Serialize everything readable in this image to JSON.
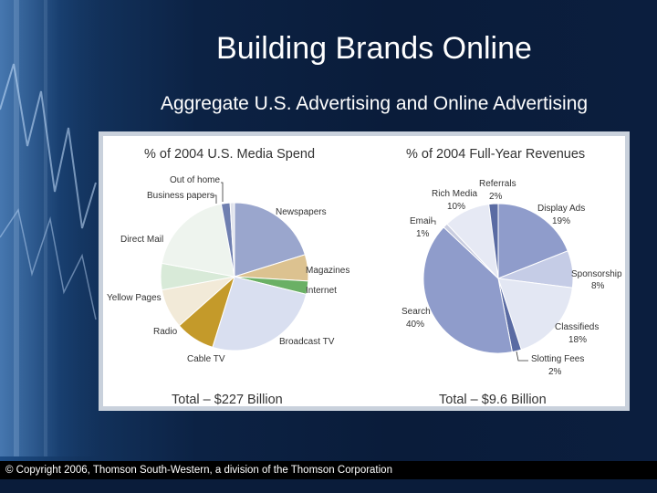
{
  "slide": {
    "title": "Building Brands Online",
    "subtitle": "Aggregate U.S. Advertising and Online Advertising",
    "footer": "© Copyright 2006, Thomson South-Western, a division of the Thomson Corporation"
  },
  "colors": {
    "background": "#0c2244",
    "panel_border": "#c9d1dc"
  },
  "chart_data": [
    {
      "type": "pie",
      "title": "% of 2004 U.S. Media Spend",
      "total_label": "Total – $227 Billion",
      "slices": [
        {
          "label": "Newspapers",
          "value": 21,
          "color": "#9aa6cd"
        },
        {
          "label": "Magazines",
          "value": 6,
          "color": "#dcc290"
        },
        {
          "label": "Internet",
          "value": 3,
          "color": "#6ab065"
        },
        {
          "label": "Broadcast TV",
          "value": 27,
          "color": "#d9dff0"
        },
        {
          "label": "Cable TV",
          "value": 9,
          "color": "#c49a2a"
        },
        {
          "label": "Radio",
          "value": 9,
          "color": "#f2ead8"
        },
        {
          "label": "Yellow Pages",
          "value": 6,
          "color": "#d8ead8"
        },
        {
          "label": "Direct Mail",
          "value": 20,
          "color": "#eef4ee"
        },
        {
          "label": "Business papers",
          "value": 2,
          "color": "#6f7fb0"
        },
        {
          "label": "Out of home",
          "value": 1,
          "color": "#e0e3ec"
        }
      ]
    },
    {
      "type": "pie",
      "title": "% of 2004 Full-Year Revenues",
      "total_label": "Total – $9.6 Billion",
      "slices": [
        {
          "label": "Display Ads",
          "value": 19,
          "pct": "19%",
          "color": "#8f9ccb"
        },
        {
          "label": "Sponsorship",
          "value": 8,
          "pct": "8%",
          "color": "#c5cce6"
        },
        {
          "label": "Classifieds",
          "value": 18,
          "pct": "18%",
          "color": "#e3e7f3"
        },
        {
          "label": "Slotting Fees",
          "value": 2,
          "pct": "2%",
          "color": "#5a6ba3"
        },
        {
          "label": "Search",
          "value": 40,
          "pct": "40%",
          "color": "#8f9ccb"
        },
        {
          "label": "Email",
          "value": 1,
          "pct": "1%",
          "color": "#c9cde0"
        },
        {
          "label": "Rich Media",
          "value": 10,
          "pct": "10%",
          "color": "#e6e9f4"
        },
        {
          "label": "Referrals",
          "value": 2,
          "pct": "2%",
          "color": "#5a6ba3"
        }
      ]
    }
  ]
}
